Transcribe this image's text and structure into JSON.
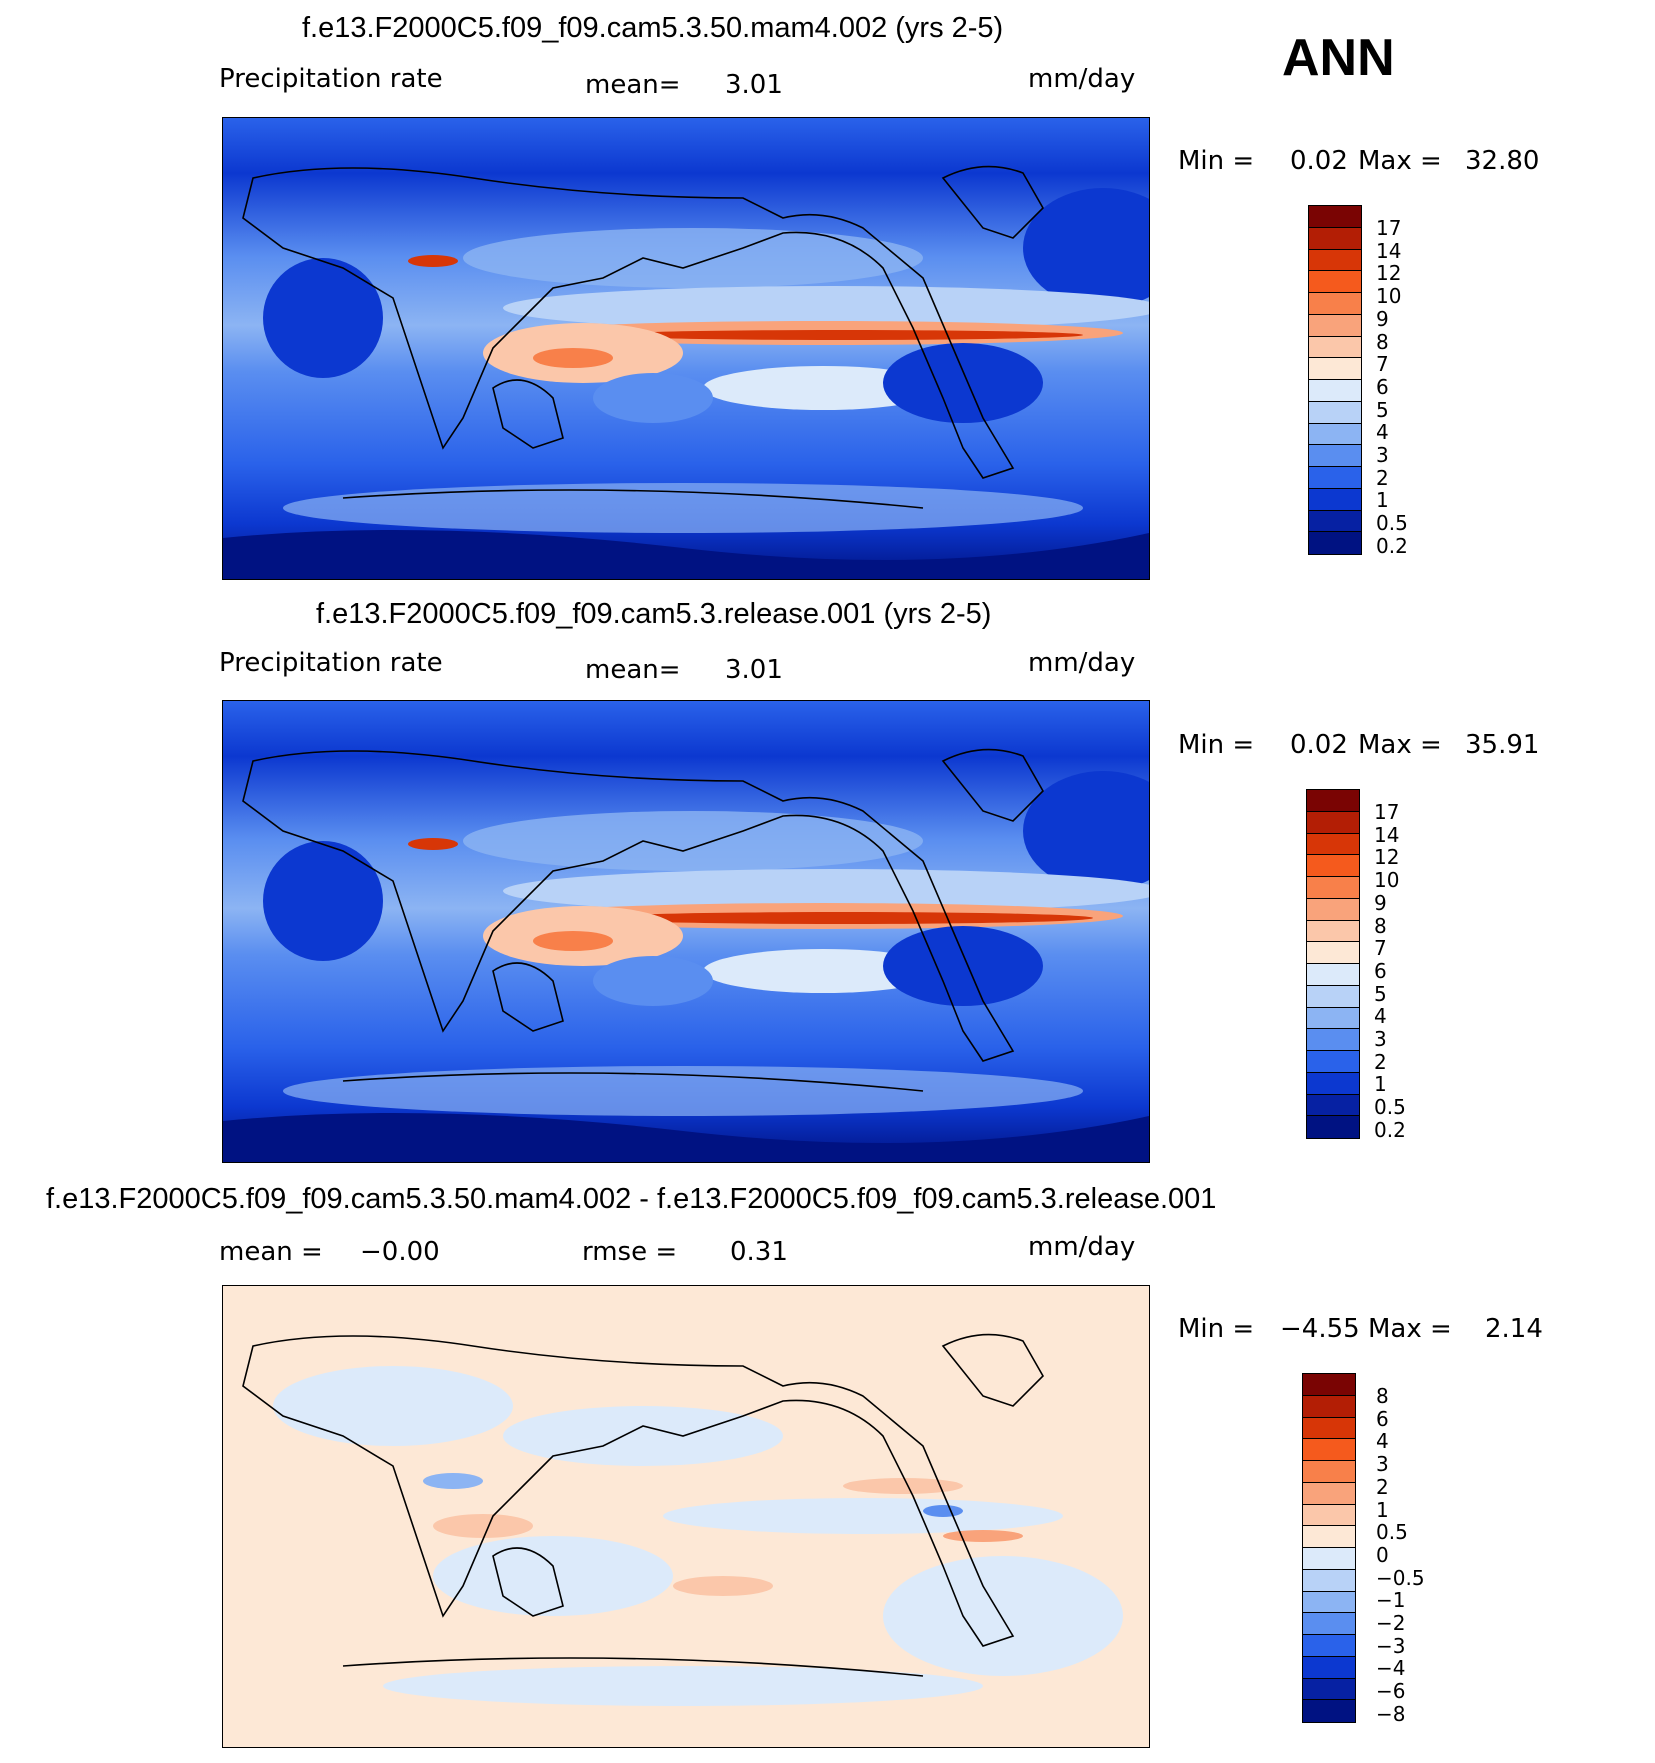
{
  "season": "ANN",
  "units": "mm/day",
  "panels": [
    {
      "title": "f.e13.F2000C5.f09_f09.cam5.3.50.mam4.002 (yrs 2-5)",
      "left_label": "Precipitation  rate",
      "stat_label": "mean=",
      "stat_value": "3.01",
      "extra_label": "",
      "extra_value": "",
      "min_label": "Min  =",
      "min_value": "0.02",
      "max_label": "Max  =",
      "max_value": "32.80",
      "cbar_levels": [
        "17",
        "14",
        "12",
        "10",
        "9",
        "8",
        "7",
        "6",
        "5",
        "4",
        "3",
        "2",
        "1",
        "0.5",
        "0.2"
      ]
    },
    {
      "title": "f.e13.F2000C5.f09_f09.cam5.3.release.001 (yrs 2-5)",
      "left_label": "Precipitation  rate",
      "stat_label": "mean=",
      "stat_value": "3.01",
      "extra_label": "",
      "extra_value": "",
      "min_label": "Min  =",
      "min_value": "0.02",
      "max_label": "Max  =",
      "max_value": "35.91",
      "cbar_levels": [
        "17",
        "14",
        "12",
        "10",
        "9",
        "8",
        "7",
        "6",
        "5",
        "4",
        "3",
        "2",
        "1",
        "0.5",
        "0.2"
      ]
    },
    {
      "title": "f.e13.F2000C5.f09_f09.cam5.3.50.mam4.002 - f.e13.F2000C5.f09_f09.cam5.3.release.001",
      "left_label": "mean  =",
      "stat_label": "",
      "stat_value": "−0.00",
      "extra_label": "rmse  =",
      "extra_value": "0.31",
      "min_label": "Min  =",
      "min_value": "−4.55",
      "max_label": "Max  =",
      "max_value": "2.14",
      "cbar_levels": [
        "8",
        "6",
        "4",
        "3",
        "2",
        "1",
        "0.5",
        "0",
        "−0.5",
        "−1",
        "−2",
        "−3",
        "−4",
        "−6",
        "−8"
      ]
    }
  ],
  "colors": {
    "precip_scale": [
      "#7a0403",
      "#b31e05",
      "#d73607",
      "#f55a1d",
      "#f8804a",
      "#f9a37b",
      "#fbc7aa",
      "#fde8d6",
      "#dceafa",
      "#b8d2f7",
      "#8cb4f3",
      "#5a8ef0",
      "#2a62ea",
      "#0c38d0",
      "#0621a3",
      "#001282"
    ],
    "diff_scale": [
      "#7a0403",
      "#b31e05",
      "#d73607",
      "#f55a1d",
      "#f8804a",
      "#f9a37b",
      "#fbc7aa",
      "#fde8d6",
      "#dceafa",
      "#b8d2f7",
      "#8cb4f3",
      "#5a8ef0",
      "#2a62ea",
      "#0c38d0",
      "#0621a3",
      "#001282"
    ]
  }
}
